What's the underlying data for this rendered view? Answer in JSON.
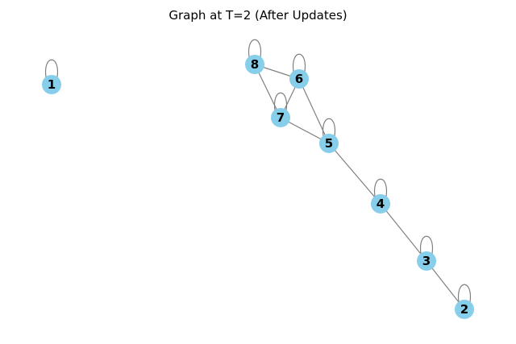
{
  "title": "Graph at T=2 (After Updates)",
  "style": {
    "node_color": "#87CEEB",
    "edge_color": "#808080",
    "label_color": "#000000",
    "background": "#ffffff"
  },
  "nodes": [
    {
      "id": "1",
      "label": "1"
    },
    {
      "id": "2",
      "label": "2"
    },
    {
      "id": "3",
      "label": "3"
    },
    {
      "id": "4",
      "label": "4"
    },
    {
      "id": "5",
      "label": "5"
    },
    {
      "id": "6",
      "label": "6"
    },
    {
      "id": "7",
      "label": "7"
    },
    {
      "id": "8",
      "label": "8"
    }
  ],
  "edges": [
    {
      "source": "1",
      "target": "1"
    },
    {
      "source": "2",
      "target": "2"
    },
    {
      "source": "3",
      "target": "3"
    },
    {
      "source": "4",
      "target": "4"
    },
    {
      "source": "5",
      "target": "5"
    },
    {
      "source": "6",
      "target": "6"
    },
    {
      "source": "7",
      "target": "7"
    },
    {
      "source": "8",
      "target": "8"
    },
    {
      "source": "8",
      "target": "6"
    },
    {
      "source": "8",
      "target": "7"
    },
    {
      "source": "6",
      "target": "7"
    },
    {
      "source": "6",
      "target": "5"
    },
    {
      "source": "7",
      "target": "5"
    },
    {
      "source": "5",
      "target": "4"
    },
    {
      "source": "4",
      "target": "3"
    },
    {
      "source": "3",
      "target": "2"
    }
  ]
}
